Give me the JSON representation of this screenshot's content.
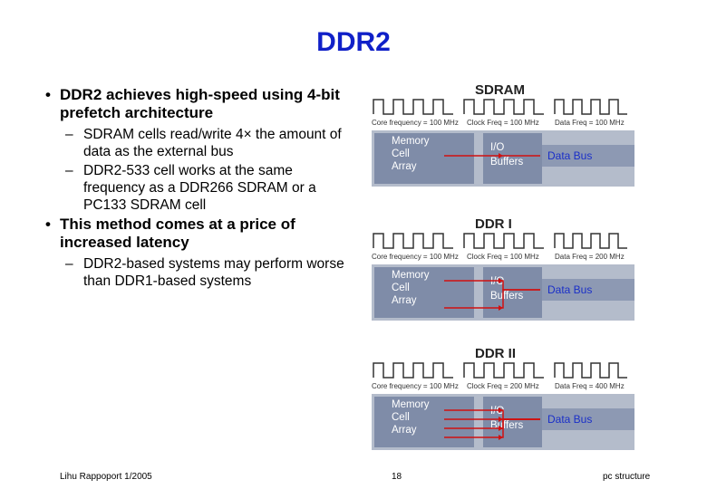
{
  "title": "DDR2",
  "bullets": [
    {
      "text": "DDR2 achieves high-speed using 4-bit prefetch architecture",
      "sub": [
        "SDRAM cells read/write 4× the amount of data as the external bus",
        "DDR2-533 cell works at the same frequency as a DDR266 SDRAM or a PC133 SDRAM cell"
      ]
    },
    {
      "text": "This method comes at a price of increased latency",
      "sub": [
        "DDR2-based systems may perform worse than DDR1-based systems"
      ]
    }
  ],
  "diagrams": [
    {
      "label": "SDRAM",
      "freqs": [
        "Core frequency = 100 MHz",
        "Clock Freq = 100 MHz",
        "Data Freq = 100 MHz"
      ],
      "memory": [
        "Memory",
        "Cell",
        "Array"
      ],
      "io": [
        "I/O",
        "Buffers"
      ],
      "bus": "Data Bus"
    },
    {
      "label": "DDR I",
      "freqs": [
        "Core frequency = 100 MHz",
        "Clock Freq = 100 MHz",
        "Data Freq = 200 MHz"
      ],
      "memory": [
        "Memory",
        "Cell",
        "Array"
      ],
      "io": [
        "I/O",
        "Buffers"
      ],
      "bus": "Data Bus"
    },
    {
      "label": "DDR II",
      "freqs": [
        "Core frequency = 100 MHz",
        "Clock Freq = 200 MHz",
        "Data Freq = 400 MHz"
      ],
      "memory": [
        "Memory",
        "Cell",
        "Array"
      ],
      "io": [
        "I/O",
        "Buffers"
      ],
      "bus": "Data Bus"
    }
  ],
  "footer": {
    "left": "Lihu Rappoport 1/2005",
    "page": "18",
    "right": "pc structure"
  }
}
